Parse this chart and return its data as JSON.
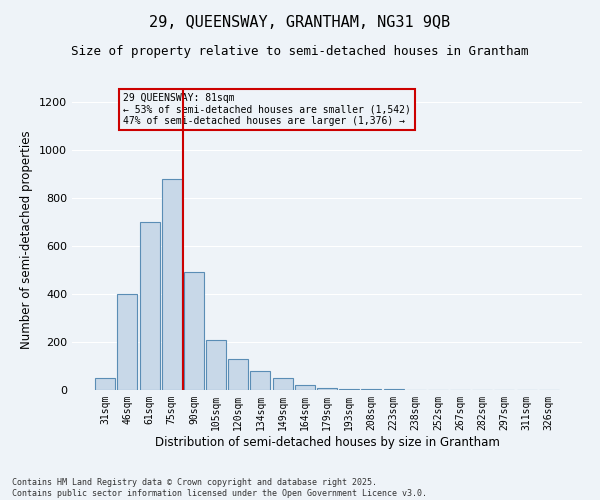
{
  "title_line1": "29, QUEENSWAY, GRANTHAM, NG31 9QB",
  "title_line2": "Size of property relative to semi-detached houses in Grantham",
  "xlabel": "Distribution of semi-detached houses by size in Grantham",
  "ylabel": "Number of semi-detached properties",
  "categories": [
    "31sqm",
    "46sqm",
    "61sqm",
    "75sqm",
    "90sqm",
    "105sqm",
    "120sqm",
    "134sqm",
    "149sqm",
    "164sqm",
    "179sqm",
    "193sqm",
    "208sqm",
    "223sqm",
    "238sqm",
    "252sqm",
    "267sqm",
    "282sqm",
    "297sqm",
    "311sqm",
    "326sqm"
  ],
  "values": [
    50,
    400,
    700,
    880,
    490,
    210,
    130,
    80,
    50,
    20,
    10,
    5,
    3,
    3,
    2,
    2,
    2,
    2,
    2,
    2,
    2
  ],
  "bar_color": "#c8d8e8",
  "bar_edge_color": "#5a8db5",
  "background_color": "#eef3f8",
  "grid_color": "#ffffff",
  "red_line_x": 3.5,
  "property_label": "29 QUEENSWAY: 81sqm",
  "pct_smaller": "53% of semi-detached houses are smaller (1,542)",
  "pct_larger": "47% of semi-detached houses are larger (1,376)",
  "ylim": [
    0,
    1250
  ],
  "yticks": [
    0,
    200,
    400,
    600,
    800,
    1000,
    1200
  ],
  "footer_line1": "Contains HM Land Registry data © Crown copyright and database right 2025.",
  "footer_line2": "Contains public sector information licensed under the Open Government Licence v3.0.",
  "annotation_box_color": "#cc0000",
  "title_fontsize": 11,
  "subtitle_fontsize": 9
}
